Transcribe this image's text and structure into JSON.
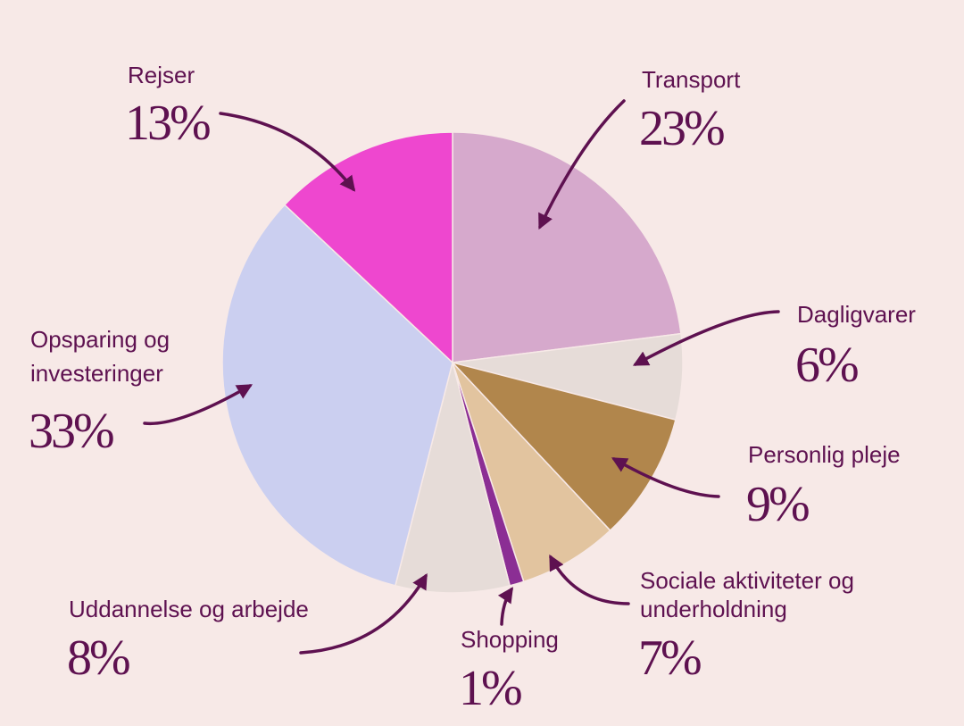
{
  "colors": {
    "background": "#F7E9E7",
    "text": "#5E1150",
    "arrow": "#5E1150",
    "slice_border": "#F7E9E7"
  },
  "chart_data": {
    "type": "pie",
    "start_angle_deg": 0,
    "direction": "clockwise",
    "slices": [
      {
        "key": "transport",
        "label": "Transport",
        "value": 23,
        "value_label": "23%",
        "color": "#D6A9CC"
      },
      {
        "key": "dagligvarer",
        "label": "Dagligvarer",
        "value": 6,
        "value_label": "6%",
        "color": "#E6DCD8"
      },
      {
        "key": "personlig-pleje",
        "label": "Personlig pleje",
        "value": 9,
        "value_label": "9%",
        "color": "#B1864C"
      },
      {
        "key": "sociale-aktiviteter",
        "label": "Sociale aktiviteter og underholdning",
        "label_lines": [
          "Sociale aktiviteter og",
          "underholdning"
        ],
        "value": 7,
        "value_label": "7%",
        "color": "#E2C49F"
      },
      {
        "key": "shopping",
        "label": "Shopping",
        "value": 1,
        "value_label": "1%",
        "color": "#8B2E94"
      },
      {
        "key": "uddannelse",
        "label": "Uddannelse og arbejde",
        "value": 8,
        "value_label": "8%",
        "color": "#E6DCD8"
      },
      {
        "key": "opsparing",
        "label": "Opsparing og investeringer",
        "label_lines": [
          "Opsparing og",
          "investeringer"
        ],
        "value": 33,
        "value_label": "33%",
        "color": "#CBCFF0"
      },
      {
        "key": "rejser",
        "label": "Rejser",
        "value": 13,
        "value_label": "13%",
        "color": "#EE47CF"
      }
    ]
  }
}
